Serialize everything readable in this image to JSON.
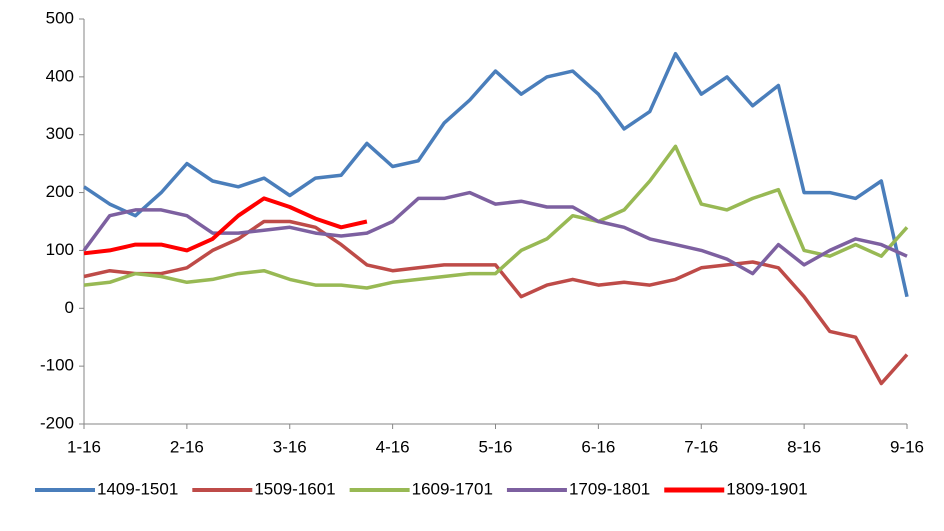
{
  "chart_data": {
    "type": "line",
    "categories": [
      "1-16",
      null,
      null,
      null,
      "2-16",
      null,
      null,
      null,
      "3-16",
      null,
      null,
      null,
      "4-16",
      null,
      null,
      null,
      "5-16",
      null,
      null,
      null,
      "6-16",
      null,
      null,
      null,
      "7-16",
      null,
      null,
      null,
      "8-16",
      null,
      null,
      null,
      "9-16"
    ],
    "series": [
      {
        "name": "1409-1501",
        "color": "#4a7ebb",
        "values": [
          210,
          180,
          160,
          200,
          250,
          220,
          210,
          225,
          195,
          225,
          230,
          285,
          245,
          255,
          320,
          360,
          410,
          370,
          400,
          410,
          370,
          310,
          340,
          440,
          370,
          400,
          350,
          385,
          200,
          200,
          190,
          220,
          20
        ]
      },
      {
        "name": "1509-1601",
        "color": "#be4b48",
        "values": [
          55,
          65,
          60,
          60,
          70,
          100,
          120,
          150,
          150,
          140,
          110,
          75,
          65,
          70,
          75,
          75,
          75,
          20,
          40,
          50,
          40,
          45,
          40,
          50,
          70,
          75,
          80,
          70,
          20,
          -40,
          -50,
          -130,
          -80
        ]
      },
      {
        "name": "1609-1701",
        "color": "#98b954",
        "values": [
          40,
          45,
          60,
          55,
          45,
          50,
          60,
          65,
          50,
          40,
          40,
          35,
          45,
          50,
          55,
          60,
          60,
          100,
          120,
          160,
          150,
          170,
          220,
          280,
          180,
          170,
          190,
          205,
          100,
          90,
          110,
          90,
          140
        ]
      },
      {
        "name": "1709-1801",
        "color": "#7d60a0",
        "values": [
          100,
          160,
          170,
          170,
          160,
          130,
          130,
          135,
          140,
          130,
          125,
          130,
          150,
          190,
          190,
          200,
          180,
          185,
          175,
          175,
          150,
          140,
          120,
          110,
          100,
          85,
          60,
          110,
          75,
          100,
          120,
          110,
          90
        ]
      },
      {
        "name": "1809-1901",
        "color": "#ff0000",
        "values": [
          95,
          100,
          110,
          110,
          100,
          120,
          160,
          190,
          175,
          155,
          140,
          150,
          null,
          null,
          null,
          null,
          null,
          null,
          null,
          null,
          null,
          null,
          null,
          null,
          null,
          null,
          null,
          null,
          null,
          null,
          null,
          null,
          null
        ]
      }
    ],
    "ylim": [
      -200,
      500
    ],
    "yticks": [
      -200,
      -100,
      0,
      100,
      200,
      300,
      400,
      500
    ],
    "grid": false,
    "legend": "bottom"
  }
}
